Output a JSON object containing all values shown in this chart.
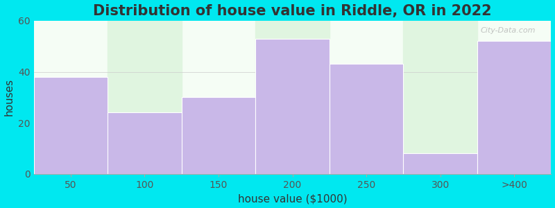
{
  "title": "Distribution of house value in Riddle, OR in 2022",
  "xlabel": "house value ($1000)",
  "ylabel": "houses",
  "categories": [
    "50",
    "100",
    "150",
    "200",
    "250",
    "300",
    ">400"
  ],
  "values": [
    38,
    24,
    30,
    53,
    43,
    8,
    52
  ],
  "bar_color": "#c9b8e8",
  "bar_edge_color": "#c9b8e8",
  "bg_color_fig": "#00e8f0",
  "plot_bg_color": "#f5fdf5",
  "stripe_color": "#e0f5e0",
  "ylim": [
    0,
    60
  ],
  "yticks": [
    0,
    20,
    40,
    60
  ],
  "bar_width": 1.0,
  "title_fontsize": 15,
  "label_fontsize": 11,
  "tick_fontsize": 10,
  "watermark": "City-Data.com",
  "stripe_indices": [
    1,
    3,
    5
  ]
}
